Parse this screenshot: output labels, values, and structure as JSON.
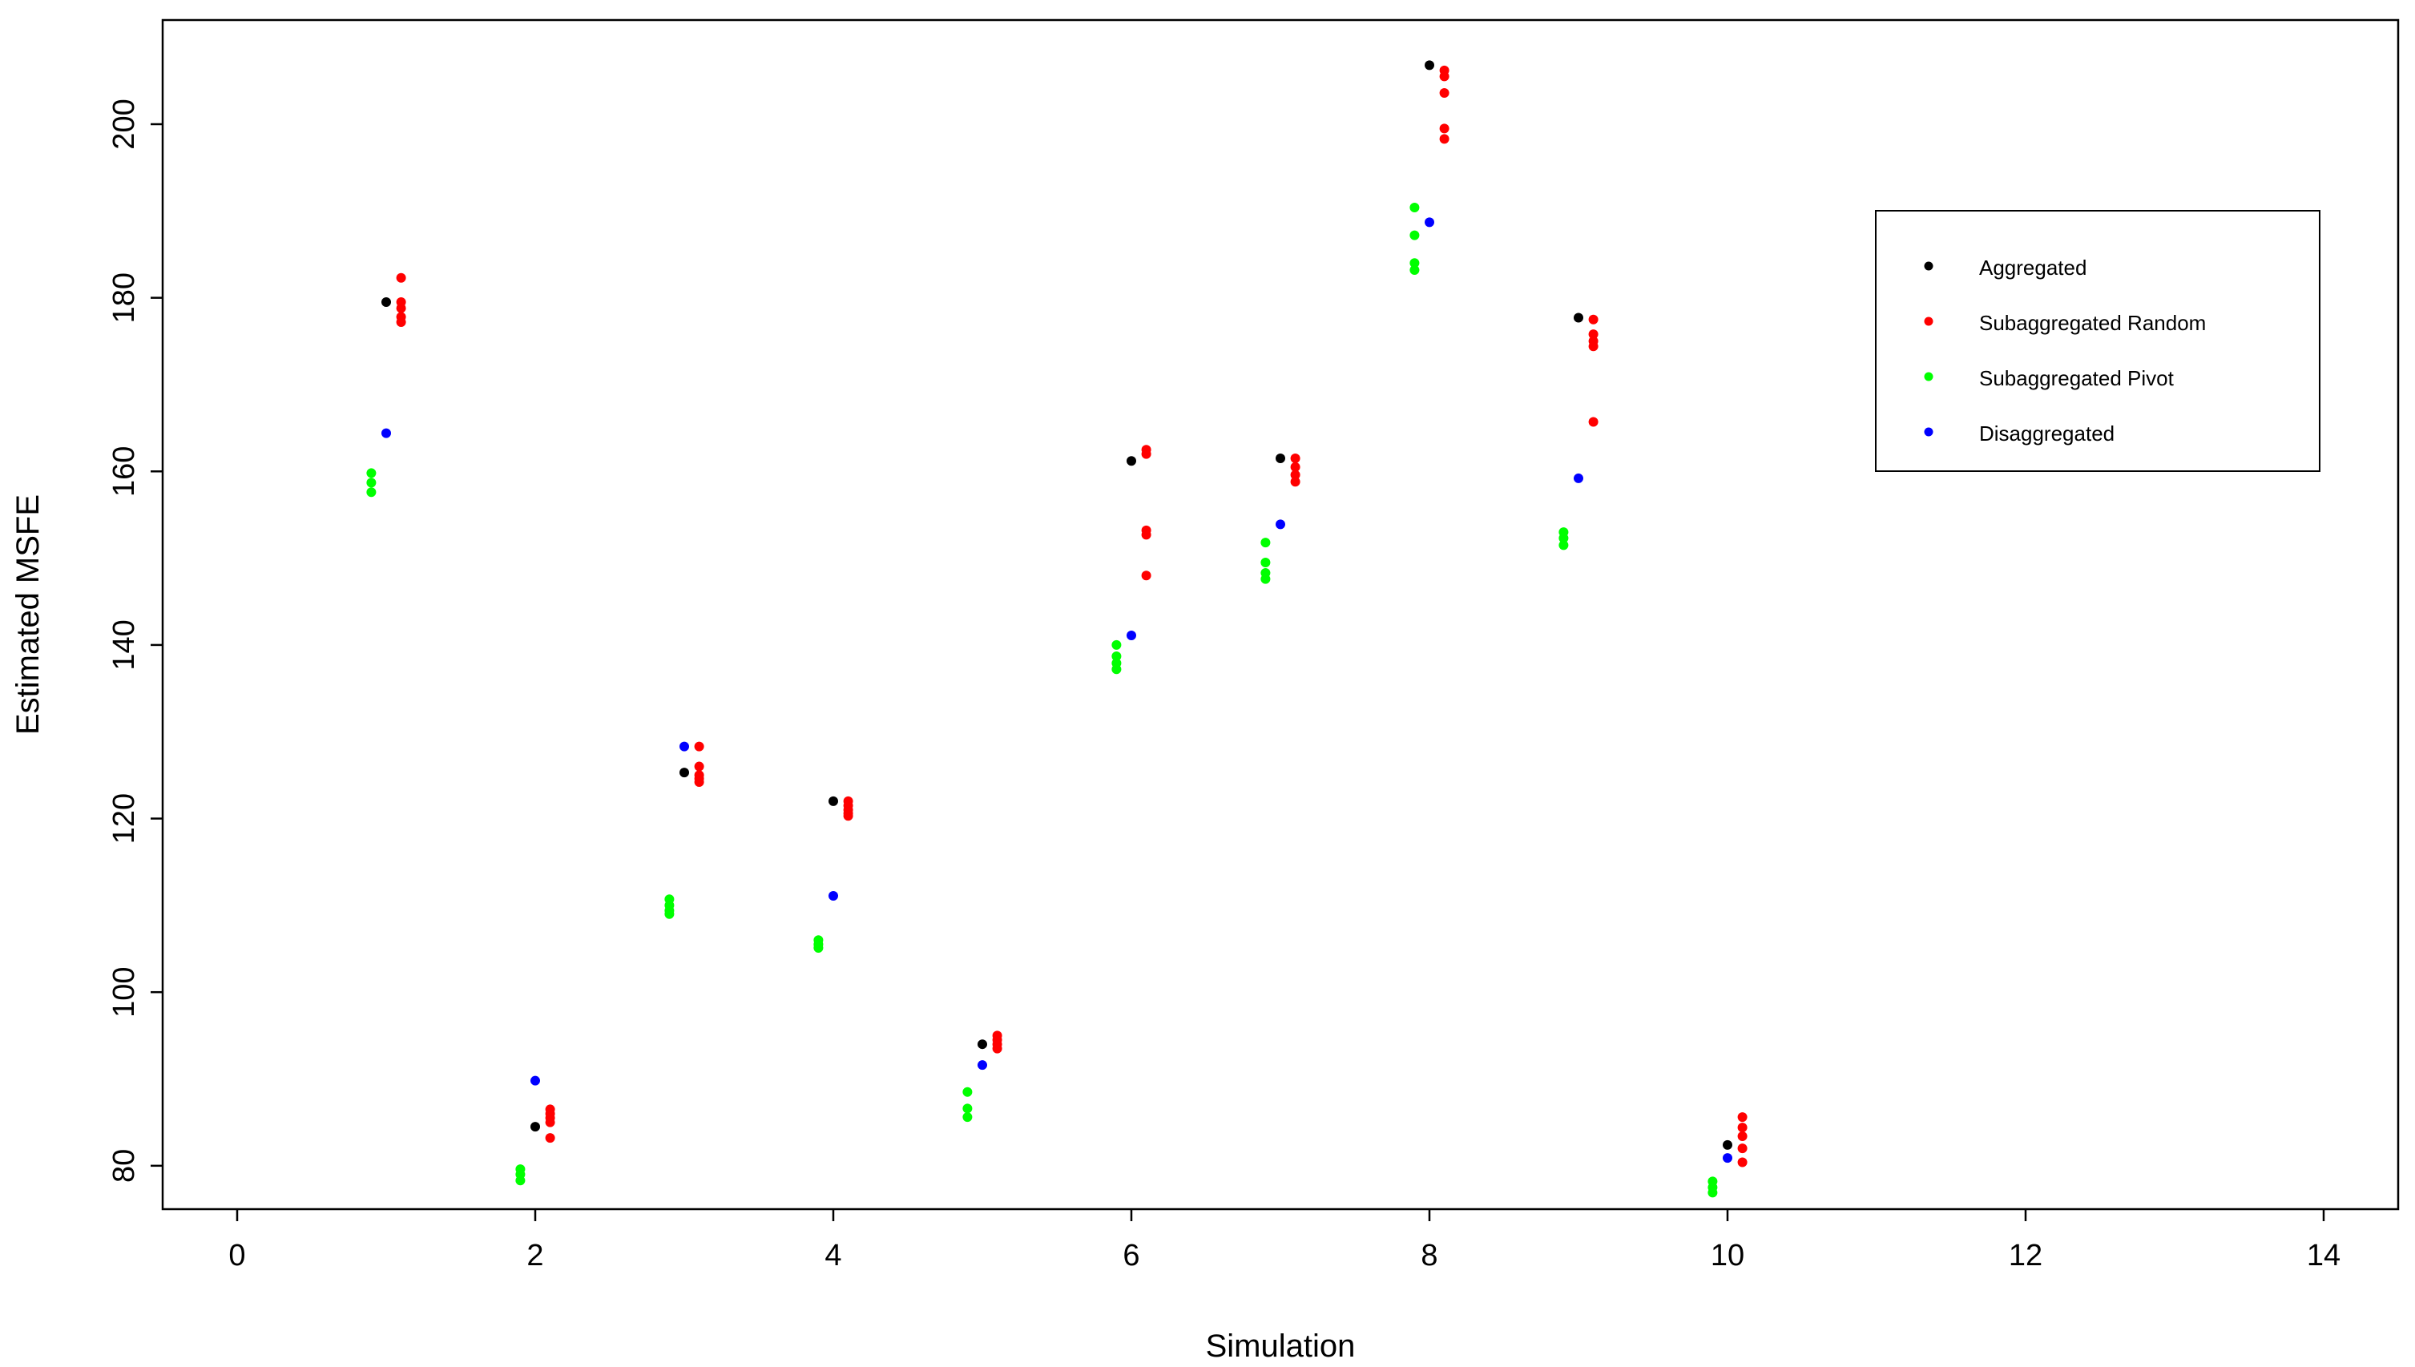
{
  "chart_data": {
    "type": "scatter",
    "title": "",
    "xlabel": "Simulation",
    "ylabel": "Estimated MSFE",
    "xlim": [
      -0.5,
      14.5
    ],
    "ylim": [
      75,
      212
    ],
    "xticks": [
      "0",
      "2",
      "4",
      "6",
      "8",
      "10",
      "12",
      "14"
    ],
    "xtick_values": [
      0,
      2,
      4,
      6,
      8,
      10,
      12,
      14
    ],
    "yticks": [
      "80",
      "100",
      "120",
      "140",
      "160",
      "180",
      "200"
    ],
    "ytick_values": [
      80,
      100,
      120,
      140,
      160,
      180,
      200
    ],
    "grid": false,
    "legend_position": "top-right",
    "series": [
      {
        "name": "Aggregated",
        "color": "#000000",
        "points": [
          [
            1,
            179.5
          ],
          [
            2,
            84.5
          ],
          [
            3,
            125.3
          ],
          [
            4,
            122.0
          ],
          [
            5,
            94.0
          ],
          [
            6,
            161.2
          ],
          [
            7,
            161.5
          ],
          [
            8,
            206.8
          ],
          [
            9,
            177.7
          ],
          [
            10,
            82.4
          ]
        ]
      },
      {
        "name": "Subaggregated Random",
        "color": "#ff0000",
        "points": [
          [
            1.1,
            182.3
          ],
          [
            1.1,
            179.5
          ],
          [
            1.1,
            178.8
          ],
          [
            1.1,
            177.8
          ],
          [
            1.1,
            177.2
          ],
          [
            2.1,
            86.5
          ],
          [
            2.1,
            86.0
          ],
          [
            2.1,
            85.5
          ],
          [
            2.1,
            85.0
          ],
          [
            2.1,
            83.2
          ],
          [
            3.1,
            128.3
          ],
          [
            3.1,
            126.0
          ],
          [
            3.1,
            125.0
          ],
          [
            3.1,
            124.6
          ],
          [
            3.1,
            124.2
          ],
          [
            4.1,
            122.0
          ],
          [
            4.1,
            121.5
          ],
          [
            4.1,
            121.0
          ],
          [
            4.1,
            120.6
          ],
          [
            4.1,
            120.3
          ],
          [
            5.1,
            95.0
          ],
          [
            5.1,
            94.5
          ],
          [
            5.1,
            94.0
          ],
          [
            5.1,
            93.5
          ],
          [
            6.1,
            162.5
          ],
          [
            6.1,
            162.0
          ],
          [
            6.1,
            153.2
          ],
          [
            6.1,
            152.7
          ],
          [
            6.1,
            148.0
          ],
          [
            7.1,
            161.5
          ],
          [
            7.1,
            160.5
          ],
          [
            7.1,
            159.6
          ],
          [
            7.1,
            158.8
          ],
          [
            8.1,
            206.2
          ],
          [
            8.1,
            205.5
          ],
          [
            8.1,
            203.6
          ],
          [
            8.1,
            199.5
          ],
          [
            8.1,
            198.3
          ],
          [
            9.1,
            177.5
          ],
          [
            9.1,
            175.8
          ],
          [
            9.1,
            175.0
          ],
          [
            9.1,
            174.4
          ],
          [
            9.1,
            165.7
          ],
          [
            10.1,
            85.6
          ],
          [
            10.1,
            84.4
          ],
          [
            10.1,
            83.4
          ],
          [
            10.1,
            82.0
          ],
          [
            10.1,
            80.4
          ]
        ]
      },
      {
        "name": "Subaggregated Pivot",
        "color": "#00ff00",
        "points": [
          [
            0.9,
            159.8
          ],
          [
            0.9,
            158.7
          ],
          [
            0.9,
            157.6
          ],
          [
            1.9,
            79.6
          ],
          [
            1.9,
            79.0
          ],
          [
            1.9,
            78.3
          ],
          [
            2.9,
            110.7
          ],
          [
            2.9,
            110.0
          ],
          [
            2.9,
            109.4
          ],
          [
            2.9,
            109.0
          ],
          [
            3.9,
            106.0
          ],
          [
            3.9,
            105.5
          ],
          [
            3.9,
            105.1
          ],
          [
            4.9,
            88.5
          ],
          [
            4.9,
            86.6
          ],
          [
            4.9,
            85.6
          ],
          [
            5.9,
            140.0
          ],
          [
            5.9,
            138.7
          ],
          [
            5.9,
            137.9
          ],
          [
            5.9,
            137.2
          ],
          [
            6.9,
            151.8
          ],
          [
            6.9,
            149.5
          ],
          [
            6.9,
            148.3
          ],
          [
            6.9,
            147.6
          ],
          [
            7.9,
            190.4
          ],
          [
            7.9,
            187.2
          ],
          [
            7.9,
            184.0
          ],
          [
            7.9,
            183.2
          ],
          [
            8.9,
            153.0
          ],
          [
            8.9,
            152.3
          ],
          [
            8.9,
            151.5
          ],
          [
            9.9,
            78.2
          ],
          [
            9.9,
            77.5
          ],
          [
            9.9,
            76.9
          ]
        ]
      },
      {
        "name": "Disaggregated",
        "color": "#0000ff",
        "points": [
          [
            1,
            164.4
          ],
          [
            2,
            89.8
          ],
          [
            3,
            128.3
          ],
          [
            4,
            111.1
          ],
          [
            5,
            91.6
          ],
          [
            6,
            141.1
          ],
          [
            7,
            153.9
          ],
          [
            8,
            188.7
          ],
          [
            9,
            159.2
          ],
          [
            10,
            80.9
          ]
        ]
      }
    ]
  }
}
